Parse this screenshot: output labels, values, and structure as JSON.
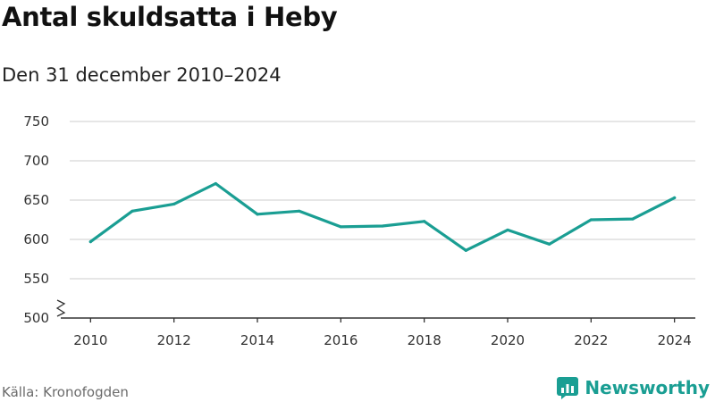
{
  "title": "Antal skuldsatta i Heby",
  "subtitle": "Den 31 december 2010–2024",
  "source": "Källa: Kronofogden",
  "brand": {
    "name": "Newsworthy",
    "icon": "newsworthy-logo-icon"
  },
  "colors": {
    "line": "#1a9e93",
    "grid": "#d6d6d6",
    "axis": "#333333",
    "brand": "#1a9e93"
  },
  "chart_data": {
    "type": "line",
    "title": "Antal skuldsatta i Heby",
    "subtitle": "Den 31 december 2010–2024",
    "x": [
      2010,
      2011,
      2012,
      2013,
      2014,
      2015,
      2016,
      2017,
      2018,
      2019,
      2020,
      2021,
      2022,
      2023,
      2024
    ],
    "series": [
      {
        "values": [
          597,
          636,
          645,
          671,
          632,
          636,
          616,
          617,
          623,
          586,
          612,
          594,
          625,
          626,
          653
        ]
      }
    ],
    "x_ticks": [
      "2010",
      "2012",
      "2014",
      "2016",
      "2018",
      "2020",
      "2022",
      "2024"
    ],
    "y_ticks": [
      "500",
      "550",
      "600",
      "650",
      "700",
      "750"
    ],
    "ylim": [
      500,
      750
    ],
    "xlim": [
      2009.5,
      2024.5
    ],
    "axis_break": true,
    "grid": "horizontal"
  }
}
